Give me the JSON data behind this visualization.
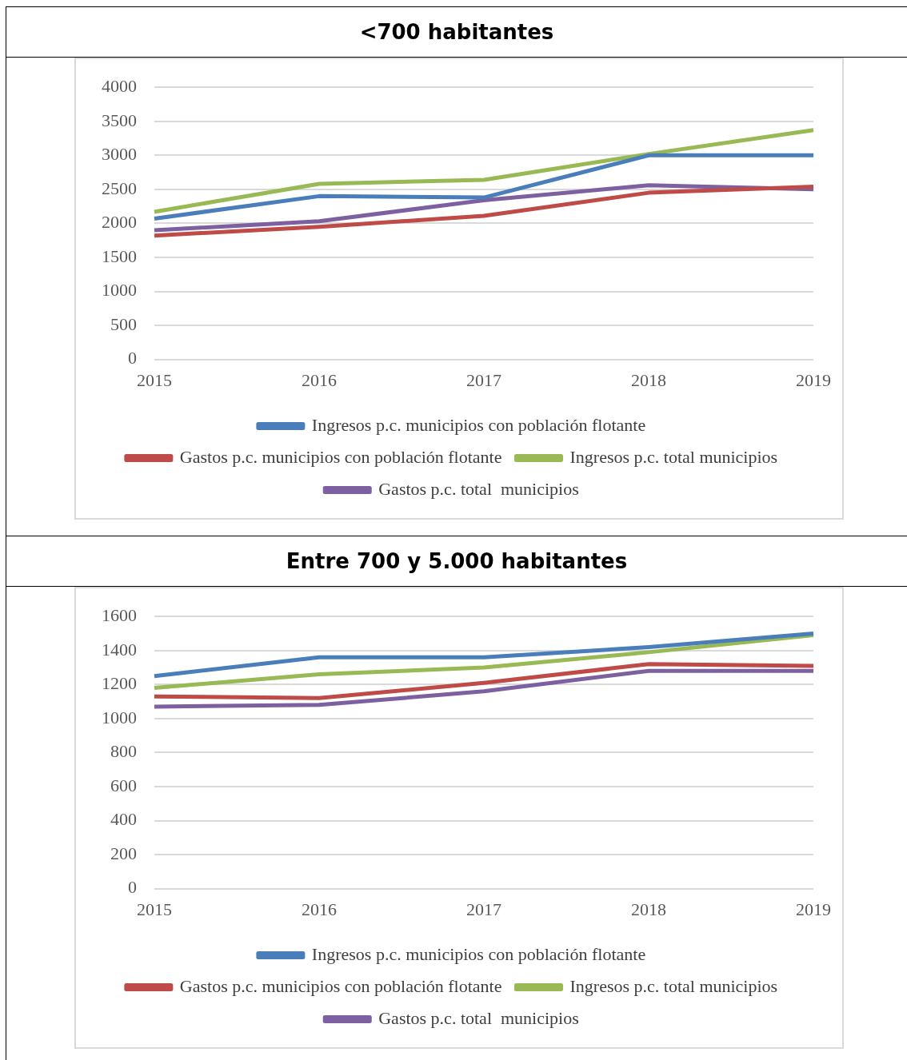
{
  "chart_data": [
    {
      "type": "line",
      "title": "<700 habitantes",
      "categories": [
        "2015",
        "2016",
        "2017",
        "2018",
        "2019"
      ],
      "series": [
        {
          "name": "Ingresos p.c. municipios con población flotante",
          "color": "#4a7ebb",
          "values": [
            2070,
            2400,
            2380,
            3000,
            3000
          ]
        },
        {
          "name": "Gastos p.c. municipios con población flotante",
          "color": "#be4b48",
          "values": [
            1820,
            1950,
            2110,
            2450,
            2540
          ]
        },
        {
          "name": "Ingresos p.c. total municipios",
          "color": "#98b954",
          "values": [
            2170,
            2580,
            2640,
            3020,
            3370
          ]
        },
        {
          "name": "Gastos p.c. total  municipios",
          "color": "#7d60a0",
          "values": [
            1900,
            2030,
            2340,
            2560,
            2500
          ]
        }
      ],
      "ylim": [
        0,
        4000
      ],
      "yticks": [
        0,
        500,
        1000,
        1500,
        2000,
        2500,
        3000,
        3500,
        4000
      ],
      "grid": "y",
      "legend": "bottom",
      "marker": "none",
      "line_style": "solid"
    },
    {
      "type": "line",
      "title": "Entre 700 y 5.000 habitantes",
      "categories": [
        "2015",
        "2016",
        "2017",
        "2018",
        "2019"
      ],
      "series": [
        {
          "name": "Ingresos p.c. municipios con población flotante",
          "color": "#4a7ebb",
          "values": [
            1250,
            1360,
            1360,
            1420,
            1500
          ]
        },
        {
          "name": "Gastos p.c. municipios con población flotante",
          "color": "#be4b48",
          "values": [
            1130,
            1120,
            1210,
            1320,
            1310
          ]
        },
        {
          "name": "Ingresos p.c. total municipios",
          "color": "#98b954",
          "values": [
            1180,
            1260,
            1300,
            1390,
            1490
          ]
        },
        {
          "name": "Gastos p.c. total  municipios",
          "color": "#7d60a0",
          "values": [
            1070,
            1080,
            1160,
            1280,
            1280
          ]
        }
      ],
      "ylim": [
        0,
        1600
      ],
      "yticks": [
        0,
        200,
        400,
        600,
        800,
        1000,
        1200,
        1400,
        1600
      ],
      "grid": "y",
      "legend": "bottom",
      "marker": "none",
      "line_style": "solid"
    }
  ]
}
